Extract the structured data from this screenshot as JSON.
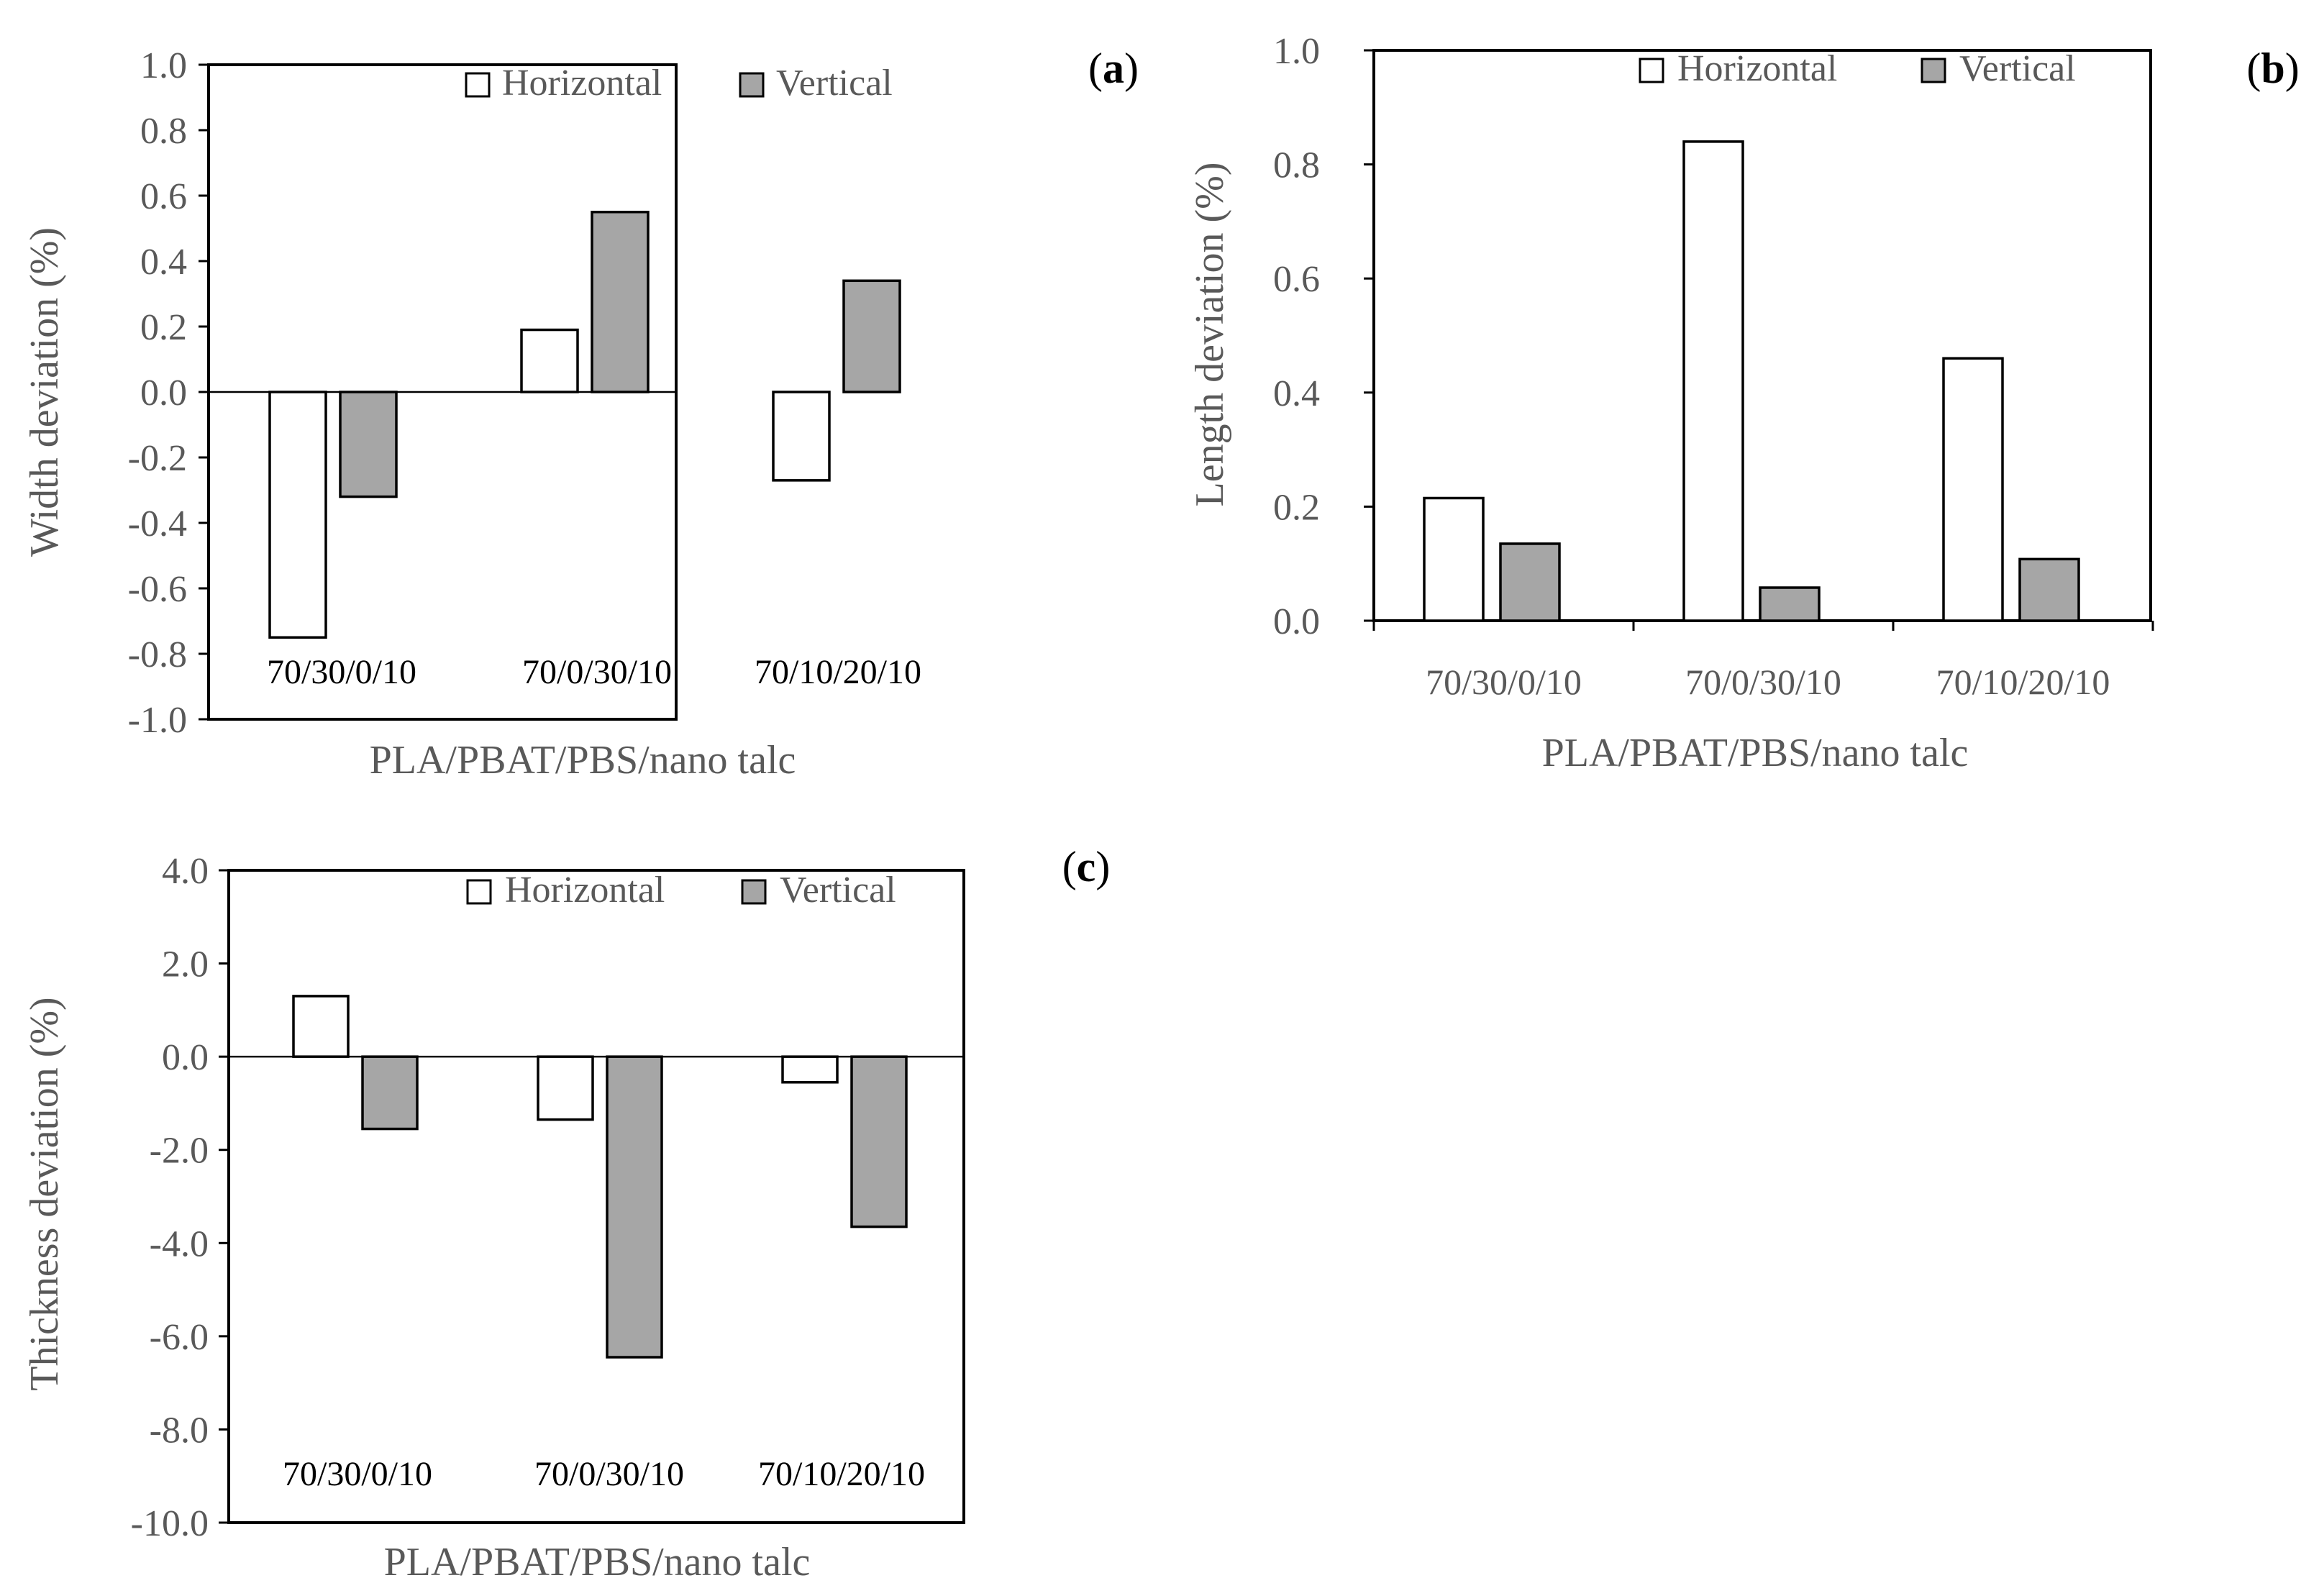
{
  "chart_data": [
    {
      "id": "a",
      "type": "bar",
      "panel_label": "a",
      "title": "",
      "xlabel": "PLA/PBAT/PBS/nano talc",
      "ylabel": "Width deviation (%)",
      "categories": [
        "70/30/0/10",
        "70/0/30/10",
        "70/10/20/10"
      ],
      "category_label_placement": "inside-bottom",
      "ylim": [
        -1.0,
        1.0
      ],
      "ytick_step": 0.2,
      "ytick_decimals": 1,
      "grid": false,
      "legend_position": "top-right",
      "series": [
        {
          "name": "Horizontal",
          "color": "#ffffff",
          "values": [
            -0.75,
            0.19,
            -0.27
          ]
        },
        {
          "name": "Vertical",
          "color": "#a6a6a6",
          "values": [
            -0.32,
            0.55,
            0.34
          ]
        }
      ]
    },
    {
      "id": "b",
      "type": "bar",
      "panel_label": "b",
      "title": "",
      "xlabel": "PLA/PBAT/PBS/nano talc",
      "ylabel": "Length deviation (%)",
      "categories": [
        "70/30/0/10",
        "70/0/30/10",
        "70/10/20/10"
      ],
      "category_label_placement": "below-axis",
      "ylim": [
        0.0,
        1.0
      ],
      "ytick_step": 0.2,
      "ytick_decimals": 1,
      "grid": false,
      "legend_position": "top-right",
      "series": [
        {
          "name": "Horizontal",
          "color": "#ffffff",
          "values": [
            0.215,
            0.84,
            0.46
          ]
        },
        {
          "name": "Vertical",
          "color": "#a6a6a6",
          "values": [
            0.135,
            0.058,
            0.108
          ]
        }
      ]
    },
    {
      "id": "c",
      "type": "bar",
      "panel_label": "c",
      "title": "",
      "xlabel": "PLA/PBAT/PBS/nano talc",
      "ylabel": "Thickness deviation (%)",
      "categories": [
        "70/30/0/10",
        "70/0/30/10",
        "70/10/20/10"
      ],
      "category_label_placement": "inside-bottom",
      "ylim": [
        -10.0,
        4.0
      ],
      "ytick_step": 2.0,
      "ytick_decimals": 1,
      "grid": false,
      "legend_position": "top-right",
      "series": [
        {
          "name": "Horizontal",
          "color": "#ffffff",
          "values": [
            1.3,
            -1.35,
            -0.55
          ]
        },
        {
          "name": "Vertical",
          "color": "#a6a6a6",
          "values": [
            -1.55,
            -6.45,
            -3.65
          ]
        }
      ]
    }
  ]
}
